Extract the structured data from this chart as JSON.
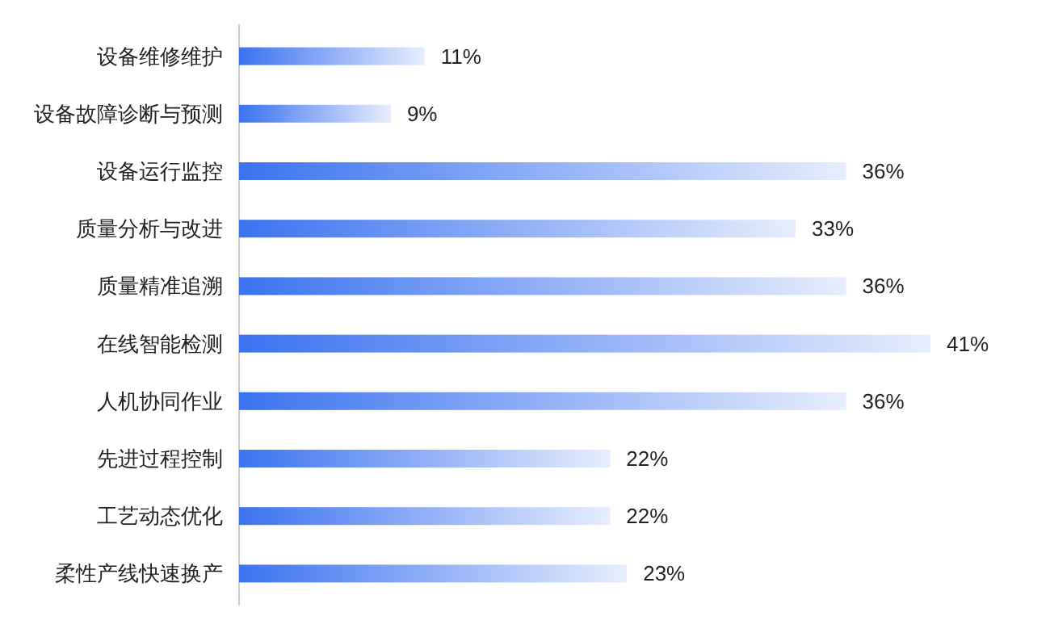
{
  "chart_data": {
    "type": "bar",
    "orientation": "horizontal",
    "categories": [
      "设备维修维护",
      "设备故障诊断与预测",
      "设备运行监控",
      "质量分析与改进",
      "质量精准追溯",
      "在线智能检测",
      "人机协同作业",
      "先进过程控制",
      "工艺动态优化",
      "柔性产线快速换产"
    ],
    "values": [
      11,
      9,
      36,
      33,
      36,
      41,
      36,
      22,
      22,
      23
    ],
    "value_labels": [
      "11%",
      "9%",
      "36%",
      "33%",
      "36%",
      "41%",
      "36%",
      "22%",
      "22%",
      "23%"
    ],
    "color": "#3a72f0"
  }
}
